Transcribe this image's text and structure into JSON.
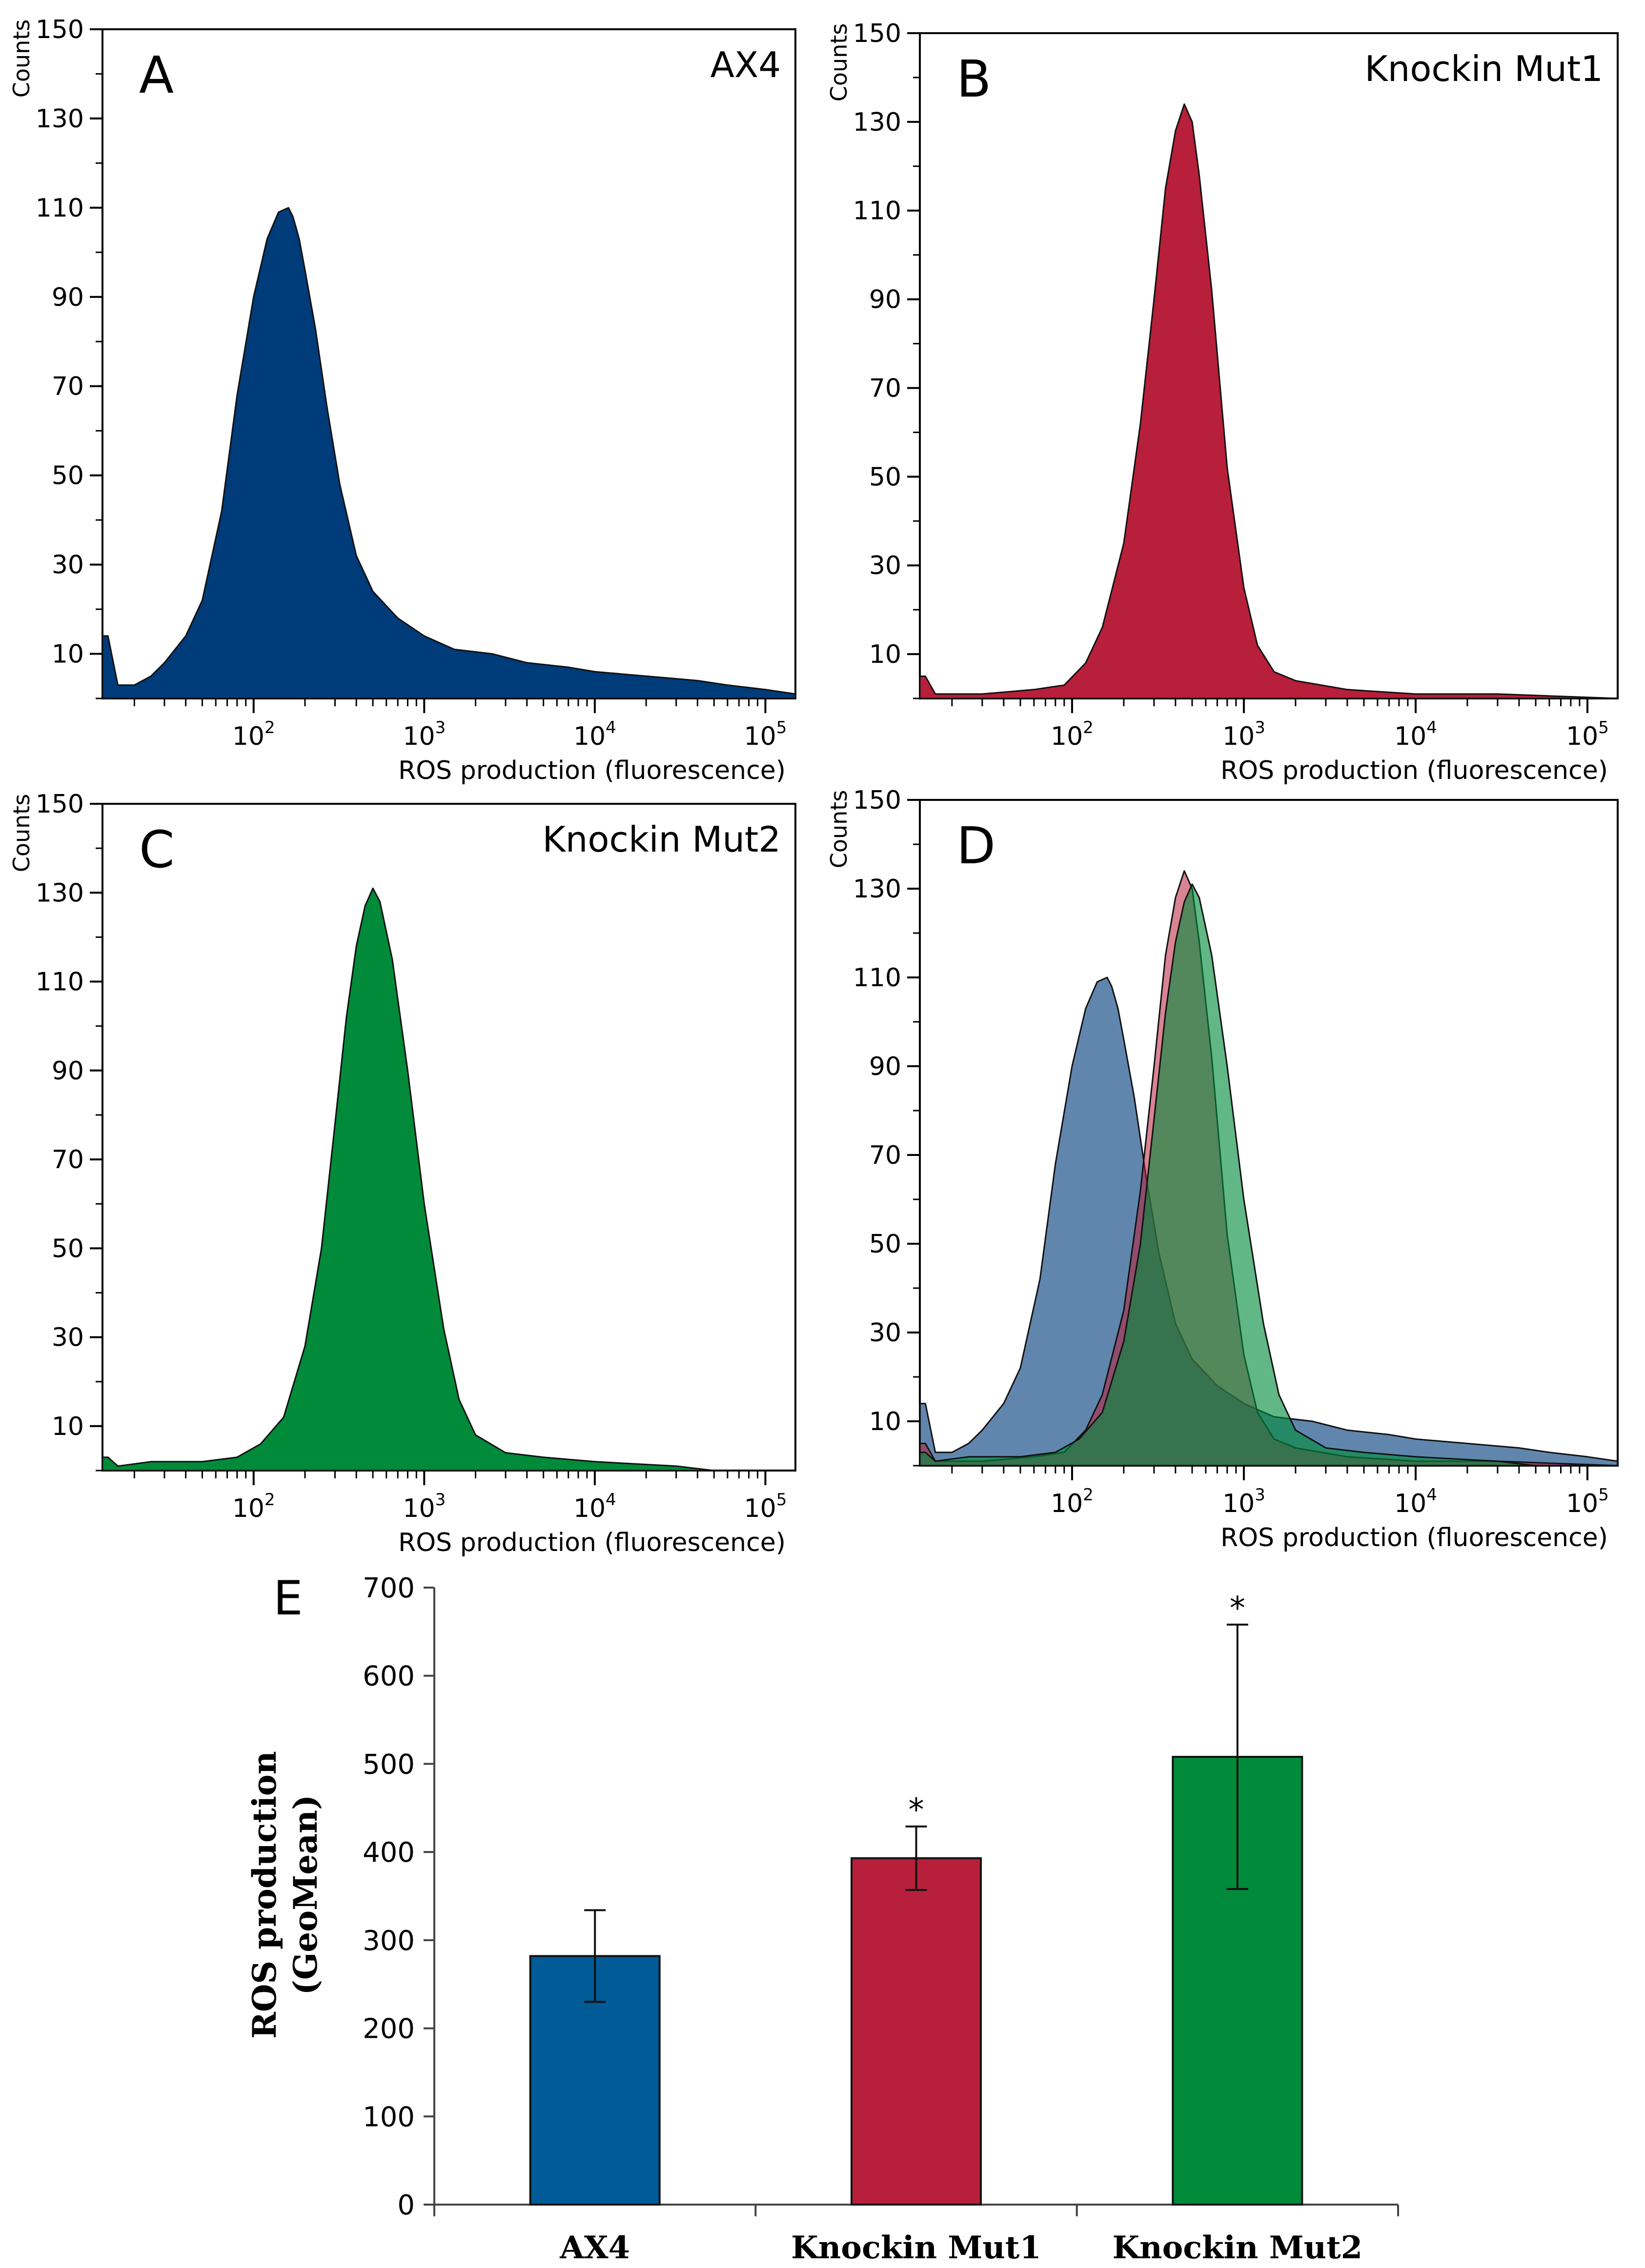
{
  "chart_data": [
    {
      "type": "area",
      "panel_label": "A",
      "sample_label": "AX4",
      "xlabel": "ROS production (fluorescence)",
      "ylabel": "Counts",
      "xscale": "log",
      "xlim": [
        13,
        150000
      ],
      "ylim": [
        0,
        150
      ],
      "x_ticks": [
        {
          "base": "10",
          "exp": "2",
          "value": 100
        },
        {
          "base": "10",
          "exp": "3",
          "value": 1000
        },
        {
          "base": "10",
          "exp": "4",
          "value": 10000
        },
        {
          "base": "10",
          "exp": "5",
          "value": 100000
        }
      ],
      "y_ticks": [
        "10",
        "30",
        "50",
        "70",
        "90",
        "110",
        "130",
        "150"
      ],
      "series": [
        {
          "color": "#003b7a",
          "x": [
            13,
            14,
            16,
            20,
            25,
            30,
            40,
            50,
            65,
            80,
            100,
            120,
            140,
            160,
            170,
            185,
            200,
            230,
            270,
            320,
            400,
            500,
            700,
            1000,
            1500,
            2500,
            4000,
            7000,
            10000,
            20000,
            40000,
            60000,
            100000,
            150000
          ],
          "y": [
            14,
            14,
            3,
            3,
            5,
            8,
            14,
            22,
            42,
            68,
            90,
            103,
            109,
            110,
            108,
            103,
            96,
            83,
            65,
            48,
            32,
            24,
            18,
            14,
            11,
            10,
            8,
            7,
            6,
            5,
            4,
            3,
            2,
            1
          ]
        }
      ]
    },
    {
      "type": "area",
      "panel_label": "B",
      "sample_label": "Knockin Mut1",
      "xlabel": "ROS production (fluorescence)",
      "ylabel": "Counts",
      "xscale": "log",
      "xlim": [
        13,
        150000
      ],
      "ylim": [
        0,
        150
      ],
      "x_ticks": [
        {
          "base": "10",
          "exp": "2",
          "value": 100
        },
        {
          "base": "10",
          "exp": "3",
          "value": 1000
        },
        {
          "base": "10",
          "exp": "4",
          "value": 10000
        },
        {
          "base": "10",
          "exp": "5",
          "value": 100000
        }
      ],
      "y_ticks": [
        "10",
        "30",
        "50",
        "70",
        "90",
        "110",
        "130",
        "150"
      ],
      "series": [
        {
          "color": "#b81f3a",
          "x": [
            13,
            14,
            16,
            30,
            60,
            90,
            120,
            150,
            200,
            250,
            300,
            350,
            400,
            450,
            500,
            550,
            650,
            800,
            1000,
            1200,
            1500,
            2000,
            4000,
            10000,
            30000,
            150000
          ],
          "y": [
            5,
            5,
            1,
            1,
            2,
            3,
            8,
            16,
            35,
            62,
            90,
            115,
            128,
            134,
            130,
            118,
            92,
            52,
            25,
            12,
            6,
            4,
            2,
            1,
            1,
            0
          ]
        }
      ]
    },
    {
      "type": "area",
      "panel_label": "C",
      "sample_label": "Knockin Mut2",
      "xlabel": "ROS production (fluorescence)",
      "ylabel": "Counts",
      "xscale": "log",
      "xlim": [
        13,
        150000
      ],
      "ylim": [
        0,
        150
      ],
      "x_ticks": [
        {
          "base": "10",
          "exp": "2",
          "value": 100
        },
        {
          "base": "10",
          "exp": "3",
          "value": 1000
        },
        {
          "base": "10",
          "exp": "4",
          "value": 10000
        },
        {
          "base": "10",
          "exp": "5",
          "value": 100000
        }
      ],
      "y_ticks": [
        "10",
        "30",
        "50",
        "70",
        "90",
        "110",
        "130",
        "150"
      ],
      "series": [
        {
          "color": "#008a3a",
          "x": [
            13,
            14,
            16,
            25,
            50,
            80,
            110,
            150,
            200,
            250,
            300,
            350,
            400,
            450,
            500,
            550,
            650,
            800,
            1000,
            1300,
            1600,
            2000,
            3000,
            5000,
            10000,
            30000,
            50000
          ],
          "y": [
            3,
            3,
            1,
            2,
            2,
            3,
            6,
            12,
            28,
            50,
            78,
            102,
            118,
            127,
            131,
            128,
            115,
            90,
            60,
            32,
            16,
            8,
            4,
            3,
            2,
            1,
            0
          ]
        }
      ]
    },
    {
      "type": "area",
      "panel_label": "D",
      "xlabel": "ROS production (fluorescence)",
      "ylabel": "Counts",
      "xscale": "log",
      "xlim": [
        13,
        150000
      ],
      "ylim": [
        0,
        150
      ],
      "x_ticks": [
        {
          "base": "10",
          "exp": "2",
          "value": 100
        },
        {
          "base": "10",
          "exp": "3",
          "value": 1000
        },
        {
          "base": "10",
          "exp": "4",
          "value": 10000
        },
        {
          "base": "10",
          "exp": "5",
          "value": 100000
        }
      ],
      "y_ticks": [
        "10",
        "30",
        "50",
        "70",
        "90",
        "110",
        "130",
        "150"
      ],
      "series": [
        {
          "color": "#003b7a",
          "x": [
            13,
            14,
            16,
            20,
            25,
            30,
            40,
            50,
            65,
            80,
            100,
            120,
            140,
            160,
            170,
            185,
            200,
            230,
            270,
            320,
            400,
            500,
            700,
            1000,
            1500,
            2500,
            4000,
            7000,
            10000,
            20000,
            40000,
            60000,
            100000,
            150000
          ],
          "y": [
            14,
            14,
            3,
            3,
            5,
            8,
            14,
            22,
            42,
            68,
            90,
            103,
            109,
            110,
            108,
            103,
            96,
            83,
            65,
            48,
            32,
            24,
            18,
            14,
            11,
            10,
            8,
            7,
            6,
            5,
            4,
            3,
            2,
            1
          ]
        },
        {
          "color": "#b81f3a",
          "x": [
            13,
            14,
            16,
            30,
            60,
            90,
            120,
            150,
            200,
            250,
            300,
            350,
            400,
            450,
            500,
            550,
            650,
            800,
            1000,
            1200,
            1500,
            2000,
            4000,
            10000,
            30000,
            150000
          ],
          "y": [
            5,
            5,
            1,
            1,
            2,
            3,
            8,
            16,
            35,
            62,
            90,
            115,
            128,
            134,
            130,
            118,
            92,
            52,
            25,
            12,
            6,
            4,
            2,
            1,
            1,
            0
          ]
        },
        {
          "color": "#008a3a",
          "x": [
            13,
            14,
            16,
            25,
            50,
            80,
            110,
            150,
            200,
            250,
            300,
            350,
            400,
            450,
            500,
            550,
            650,
            800,
            1000,
            1300,
            1600,
            2000,
            3000,
            5000,
            10000,
            30000,
            50000
          ],
          "y": [
            3,
            3,
            1,
            2,
            2,
            3,
            6,
            12,
            28,
            50,
            78,
            102,
            118,
            127,
            131,
            128,
            115,
            90,
            60,
            32,
            16,
            8,
            4,
            3,
            2,
            1,
            0
          ]
        }
      ]
    },
    {
      "type": "bar",
      "panel_label": "E",
      "categories": [
        "AX4",
        "Knockin Mut1",
        "Knockin Mut2"
      ],
      "values": [
        282,
        393,
        508
      ],
      "errors": [
        52,
        36,
        150
      ],
      "annotations": [
        "",
        "*",
        "*"
      ],
      "colors": [
        "#005b96",
        "#b81f3a",
        "#008a3a"
      ],
      "ylabel_line1": "ROS production",
      "ylabel_line2": "(GeoMean)",
      "ylim": [
        0,
        700
      ],
      "y_ticks": [
        "0",
        "100",
        "200",
        "300",
        "400",
        "500",
        "600",
        "700"
      ]
    }
  ]
}
